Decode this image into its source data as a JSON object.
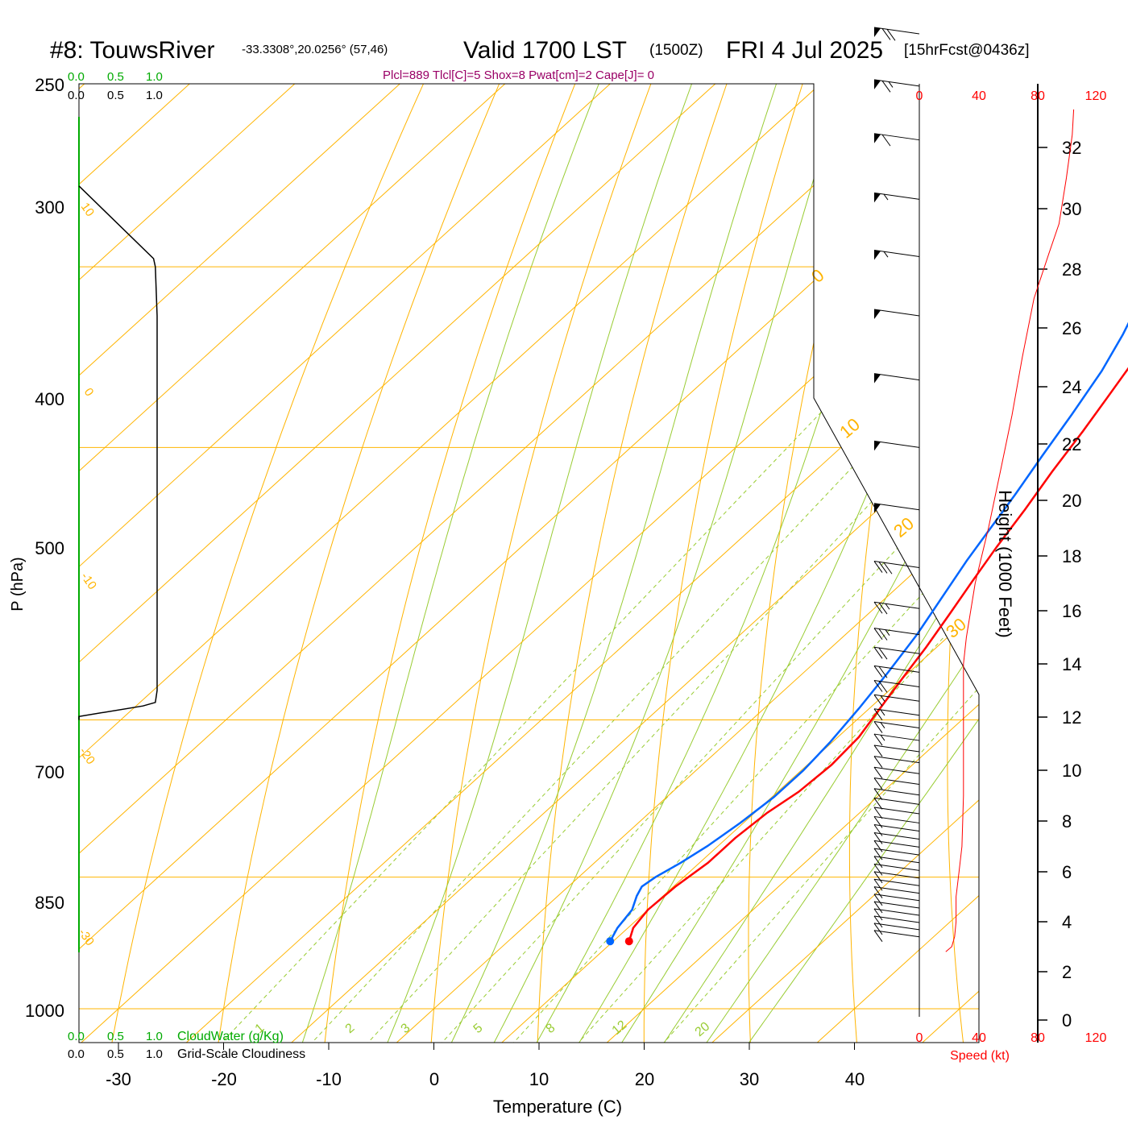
{
  "header": {
    "station": "#8: TouwsRiver",
    "coords": "-33.3308°,20.0256° (57,46)",
    "valid": "Valid 1700 LST",
    "utc": "(1500Z)",
    "date": "FRI 4 Jul 2025",
    "forecast": "[15hrFcst@0436z]",
    "indices": "Plcl=889 Tlcl[C]=5 Shox=8 Pwat[cm]=2 Cape[J]= 0"
  },
  "colors": {
    "temperature": "#ff0000",
    "dewpoint": "#0066ff",
    "isotherm": "#ffb400",
    "dry_adiabat": "#ffb400",
    "moist_adiabat": "#99cc33",
    "mixing_ratio": "#99cc33",
    "cloud_green": "#00aa00",
    "indices": "#990066",
    "speed": "#ff0000"
  },
  "chart_data": {
    "type": "line",
    "subtype": "skew-T log-P sounding",
    "xlabel": "Temperature (C)",
    "ylabel": "P (hPa)",
    "x_ticks": [
      "-30",
      "-20",
      "-10",
      "0",
      "10",
      "20",
      "30",
      "40"
    ],
    "y_ticks": [
      "250",
      "300",
      "400",
      "500",
      "700",
      "850",
      "1000"
    ],
    "isobars": [
      250,
      300,
      400,
      500,
      700,
      850,
      1000
    ],
    "isotherm_labels": [
      "10",
      "0",
      "-10",
      "-20",
      "-30",
      "0",
      "10",
      "20",
      "30"
    ],
    "mixing_ratio_labels": [
      "1",
      "2",
      "3",
      "5",
      "8",
      "12",
      "20"
    ],
    "series": [
      {
        "key": "temperature",
        "points": [
          [
            11.5,
            920
          ],
          [
            10.5,
            905
          ],
          [
            10.0,
            885
          ],
          [
            10.2,
            860
          ],
          [
            10.8,
            835
          ],
          [
            10.8,
            810
          ],
          [
            11.2,
            785
          ],
          [
            12.0,
            765
          ],
          [
            12.3,
            740
          ],
          [
            12.0,
            715
          ],
          [
            11.0,
            690
          ],
          [
            10.0,
            665
          ],
          [
            9.0,
            640
          ],
          [
            7.8,
            615
          ],
          [
            6.5,
            590
          ],
          [
            5.2,
            565
          ],
          [
            4.0,
            540
          ],
          [
            2.6,
            515
          ],
          [
            1.3,
            490
          ],
          [
            0.1,
            470
          ],
          [
            -1.5,
            445
          ],
          [
            -3.3,
            420
          ],
          [
            -4.8,
            397
          ],
          [
            -6.4,
            378
          ],
          [
            -7.8,
            360
          ],
          [
            -9.0,
            343
          ],
          [
            -9.8,
            327
          ],
          [
            -10.5,
            315
          ],
          [
            -11.0,
            303
          ],
          [
            -11.5,
            292
          ],
          [
            -11.8,
            282
          ],
          [
            -11.6,
            272
          ],
          [
            -11.2,
            262
          ]
        ]
      },
      {
        "key": "dewpoint",
        "points": [
          [
            9.7,
            920
          ],
          [
            9.0,
            905
          ],
          [
            8.5,
            885
          ],
          [
            7.5,
            870
          ],
          [
            7.0,
            860
          ],
          [
            7.3,
            850
          ],
          [
            8.2,
            835
          ],
          [
            9.0,
            818
          ],
          [
            9.7,
            795
          ],
          [
            10.2,
            770
          ],
          [
            10.2,
            745
          ],
          [
            9.8,
            720
          ],
          [
            9.0,
            690
          ],
          [
            8.0,
            660
          ],
          [
            6.8,
            630
          ],
          [
            5.2,
            600
          ],
          [
            3.8,
            575
          ],
          [
            2.8,
            555
          ],
          [
            1.5,
            530
          ],
          [
            0.0,
            505
          ],
          [
            -1.5,
            480
          ],
          [
            -3.2,
            455
          ],
          [
            -5.0,
            435
          ],
          [
            -7.5,
            412
          ],
          [
            -10.0,
            392
          ],
          [
            -12.0,
            375
          ],
          [
            -13.8,
            360
          ],
          [
            -16.0,
            343
          ],
          [
            -19.0,
            325
          ],
          [
            -21.5,
            310
          ],
          [
            -23.0,
            300
          ],
          [
            -23.5,
            290
          ],
          [
            -24.0,
            280
          ],
          [
            -24.2,
            270
          ],
          [
            -24.2,
            262
          ]
        ]
      }
    ],
    "cloud_scale": {
      "green_ticks": [
        "0.0",
        "0.5",
        "1.0"
      ],
      "black_ticks": [
        "0.0",
        "0.5",
        "1.0"
      ],
      "green_label": "CloudWater (g/Kg)",
      "black_label": "Grid-Scale Cloudiness",
      "cloudiness": [
        [
          0.0,
          700
        ],
        [
          0.0,
          697
        ],
        [
          0.36,
          688
        ],
        [
          0.43,
          685
        ],
        [
          0.44,
          675
        ],
        [
          0.44,
          500
        ],
        [
          0.44,
          425
        ],
        [
          0.43,
          400
        ],
        [
          0.42,
          396
        ],
        [
          0.0,
          362
        ]
      ]
    },
    "height_axis": {
      "label": "Height (1000 Feet)",
      "ticks": [
        "0",
        "2",
        "4",
        "6",
        "8",
        "10",
        "12",
        "14",
        "16",
        "18",
        "20",
        "22",
        "24",
        "26",
        "28",
        "30",
        "32"
      ]
    },
    "speed_axis": {
      "label": "Speed (kt)",
      "ticks": [
        "0",
        "40",
        "80",
        "120"
      ],
      "profile": [
        [
          18,
          2.8
        ],
        [
          22,
          3.0
        ],
        [
          24,
          3.4
        ],
        [
          25,
          4.0
        ],
        [
          25,
          5.0
        ],
        [
          27,
          6.0
        ],
        [
          29,
          7.0
        ],
        [
          30,
          9.0
        ],
        [
          30,
          11.0
        ],
        [
          30,
          13.0
        ],
        [
          30,
          14.0
        ],
        [
          32,
          15.0
        ],
        [
          38,
          17.0
        ],
        [
          47,
          19.0
        ],
        [
          55,
          21.0
        ],
        [
          63,
          23.0
        ],
        [
          70,
          25.0
        ],
        [
          78,
          27.0
        ],
        [
          88,
          28.5
        ],
        [
          95,
          29.5
        ],
        [
          100,
          31.0
        ],
        [
          104,
          32.5
        ],
        [
          105,
          33.5
        ]
      ]
    },
    "wind_barbs": [
      {
        "p": 262,
        "knots": 100
      },
      {
        "p": 282,
        "knots": 100
      },
      {
        "p": 300,
        "knots": 70
      },
      {
        "p": 320,
        "knots": 65
      },
      {
        "p": 342,
        "knots": 60
      },
      {
        "p": 368,
        "knots": 55
      },
      {
        "p": 395,
        "knots": 55
      },
      {
        "p": 425,
        "knots": 50
      },
      {
        "p": 460,
        "knots": 50
      },
      {
        "p": 500,
        "knots": 50
      },
      {
        "p": 540,
        "knots": 50
      },
      {
        "p": 580,
        "knots": 30
      },
      {
        "p": 610,
        "knots": 25
      },
      {
        "p": 630,
        "knots": 25
      },
      {
        "p": 645,
        "knots": 20
      },
      {
        "p": 660,
        "knots": 20
      },
      {
        "p": 672,
        "knots": 20
      },
      {
        "p": 684,
        "knots": 15
      },
      {
        "p": 696,
        "knots": 15
      },
      {
        "p": 707,
        "knots": 15
      },
      {
        "p": 718,
        "knots": 15
      },
      {
        "p": 728,
        "knots": 10
      },
      {
        "p": 738,
        "knots": 10
      },
      {
        "p": 748,
        "knots": 10
      },
      {
        "p": 758,
        "knots": 10
      },
      {
        "p": 768,
        "knots": 10
      },
      {
        "p": 777,
        "knots": 10
      },
      {
        "p": 786,
        "knots": 10
      },
      {
        "p": 795,
        "knots": 10
      },
      {
        "p": 803,
        "knots": 10
      },
      {
        "p": 811,
        "knots": 10
      },
      {
        "p": 819,
        "knots": 10
      },
      {
        "p": 827,
        "knots": 10
      },
      {
        "p": 835,
        "knots": 10
      },
      {
        "p": 843,
        "knots": 10
      },
      {
        "p": 851,
        "knots": 10
      },
      {
        "p": 859,
        "knots": 10
      },
      {
        "p": 867,
        "knots": 10
      },
      {
        "p": 875,
        "knots": 10
      },
      {
        "p": 883,
        "knots": 10
      },
      {
        "p": 891,
        "knots": 10
      },
      {
        "p": 899,
        "knots": 10
      },
      {
        "p": 907,
        "knots": 10
      },
      {
        "p": 915,
        "knots": 10
      }
    ]
  }
}
